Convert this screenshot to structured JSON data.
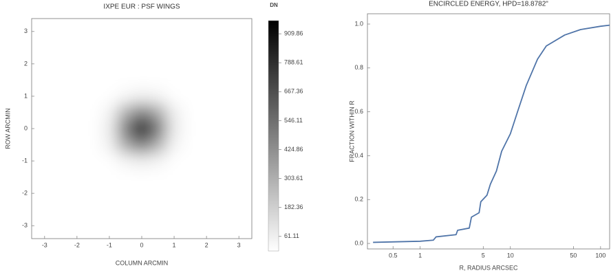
{
  "chart_data": [
    {
      "type": "heatmap",
      "title": "IXPE EUR :  PSF WINGS",
      "x_label": "COLUMN ARCMIN",
      "y_label": "ROW ARCMIN",
      "x": [
        -1.5,
        -1,
        -0.5,
        0,
        0.5,
        1,
        1.5
      ],
      "y": [
        1.5,
        1,
        0.5,
        0,
        -0.5,
        -1,
        -1.5
      ],
      "z": [
        [
          0,
          0,
          0,
          0,
          0,
          0,
          0
        ],
        [
          0,
          0,
          30,
          60,
          40,
          0,
          0
        ],
        [
          0,
          40,
          300,
          480,
          320,
          60,
          0
        ],
        [
          0,
          70,
          500,
          965,
          520,
          80,
          0
        ],
        [
          0,
          50,
          320,
          500,
          300,
          40,
          0
        ],
        [
          0,
          0,
          40,
          70,
          40,
          0,
          0
        ],
        [
          0,
          0,
          0,
          0,
          0,
          0,
          0
        ]
      ],
      "xlim": [
        -3.4,
        3.4
      ],
      "ylim": [
        -3.4,
        3.4
      ],
      "xticks": [
        -3,
        -2,
        -1,
        0,
        1,
        2,
        3
      ],
      "yticks": [
        -3,
        -2,
        -1,
        0,
        1,
        2,
        3
      ],
      "color_map": [
        "#ffffff",
        "#000000"
      ],
      "colorbar": {
        "label": "DN",
        "zlim": [
          0,
          965
        ],
        "ticks": [
          61.11,
          182.36,
          303.61,
          424.86,
          546.11,
          667.36,
          788.61,
          909.86
        ]
      }
    },
    {
      "type": "line",
      "title": "ENCIRCLED ENERGY,  HPD=18.8782\"",
      "x_label": "R, RADIUS ARCSEC",
      "y_label": "FRACTION WITHIN R",
      "log_x": true,
      "x": [
        0.3,
        1,
        1.4,
        1.5,
        2.5,
        2.6,
        3.5,
        3.7,
        4.5,
        4.7,
        5.5,
        6,
        7,
        8,
        10,
        12,
        15,
        20,
        25,
        40,
        60,
        100,
        126
      ],
      "series": [
        {
          "color": "#4f74a8",
          "values": [
            0.005,
            0.01,
            0.015,
            0.03,
            0.04,
            0.06,
            0.07,
            0.12,
            0.14,
            0.19,
            0.22,
            0.27,
            0.33,
            0.42,
            0.5,
            0.6,
            0.72,
            0.84,
            0.9,
            0.95,
            0.975,
            0.99,
            0.995
          ]
        }
      ],
      "xlim": [
        0.26,
        126
      ],
      "ylim": [
        -0.025,
        1.047
      ],
      "xticks": [
        0.5,
        1,
        5,
        10,
        50,
        100
      ],
      "yticks": [
        {
          "value": 0,
          "label": "0.0"
        },
        0.2,
        0.4,
        0.6,
        0.8,
        {
          "value": 1,
          "label": "1.0"
        }
      ]
    }
  ]
}
